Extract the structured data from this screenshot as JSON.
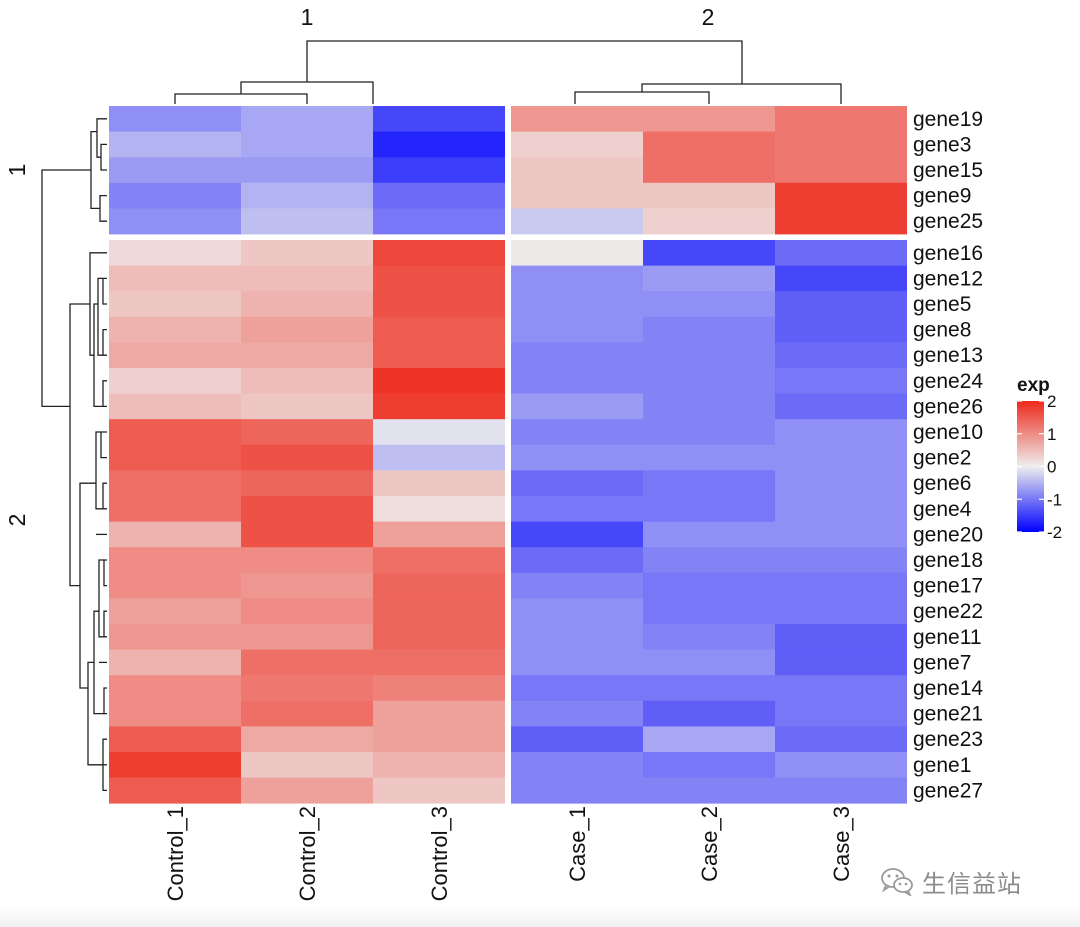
{
  "chart_data": {
    "type": "heatmap",
    "title": "",
    "legend": {
      "title": "exp",
      "ticks": [
        "2",
        "1",
        "0",
        "-1",
        "-2"
      ],
      "tick_values": [
        2,
        1,
        0,
        -1,
        -2
      ],
      "colors": {
        "low": "#0000ff",
        "mid": "#eeeeee",
        "high": "#ee2a1c"
      },
      "placement": "right"
    },
    "column_groups": [
      {
        "label": "1",
        "columns": [
          "Control_1",
          "Control_2",
          "Control_3"
        ]
      },
      {
        "label": "2",
        "columns": [
          "Case_1",
          "Case_2",
          "Case_3"
        ]
      }
    ],
    "row_groups": [
      {
        "label": "1",
        "rows": [
          "gene19",
          "gene3",
          "gene15",
          "gene9",
          "gene25"
        ]
      },
      {
        "label": "2",
        "rows": [
          "gene16",
          "gene12",
          "gene5",
          "gene8",
          "gene13",
          "gene24",
          "gene26",
          "gene10",
          "gene2",
          "gene6",
          "gene4",
          "gene20",
          "gene18",
          "gene17",
          "gene22",
          "gene11",
          "gene7",
          "gene14",
          "gene21",
          "gene23",
          "gene1",
          "gene27"
        ]
      }
    ],
    "columns": [
      "Control_1",
      "Control_2",
      "Control_3",
      "Case_1",
      "Case_2",
      "Case_3"
    ],
    "rows": [
      "gene19",
      "gene3",
      "gene15",
      "gene9",
      "gene25",
      "gene16",
      "gene12",
      "gene5",
      "gene8",
      "gene13",
      "gene24",
      "gene26",
      "gene10",
      "gene2",
      "gene6",
      "gene4",
      "gene20",
      "gene18",
      "gene17",
      "gene22",
      "gene11",
      "gene7",
      "gene14",
      "gene21",
      "gene23",
      "gene1",
      "gene27"
    ],
    "values": [
      [
        -0.8,
        -0.6,
        -1.4,
        0.9,
        0.9,
        1.2
      ],
      [
        -0.5,
        -0.6,
        -1.7,
        0.3,
        1.3,
        1.2
      ],
      [
        -0.7,
        -0.7,
        -1.5,
        0.4,
        1.3,
        1.2
      ],
      [
        -0.9,
        -0.5,
        -1.1,
        0.4,
        0.4,
        1.8
      ],
      [
        -0.8,
        -0.4,
        -1.0,
        -0.3,
        0.3,
        1.8
      ],
      [
        0.2,
        0.4,
        1.7,
        0.05,
        -1.4,
        -1.1
      ],
      [
        0.5,
        0.5,
        1.6,
        -0.8,
        -0.7,
        -1.4
      ],
      [
        0.4,
        0.6,
        1.6,
        -0.8,
        -0.8,
        -1.2
      ],
      [
        0.6,
        0.8,
        1.5,
        -0.8,
        -0.9,
        -1.2
      ],
      [
        0.7,
        0.7,
        1.5,
        -0.9,
        -0.9,
        -1.1
      ],
      [
        0.3,
        0.5,
        1.9,
        -0.9,
        -0.9,
        -1.0
      ],
      [
        0.5,
        0.4,
        1.8,
        -0.7,
        -0.9,
        -1.1
      ],
      [
        1.5,
        1.4,
        -0.1,
        -0.9,
        -0.9,
        -0.8
      ],
      [
        1.5,
        1.6,
        -0.4,
        -0.8,
        -0.8,
        -0.8
      ],
      [
        1.3,
        1.4,
        0.4,
        -1.1,
        -1.0,
        -0.8
      ],
      [
        1.3,
        1.6,
        0.15,
        -1.0,
        -1.0,
        -0.8
      ],
      [
        0.6,
        1.6,
        0.8,
        -1.4,
        -0.8,
        -0.8
      ],
      [
        1.0,
        1.0,
        1.3,
        -1.1,
        -0.9,
        -0.9
      ],
      [
        1.0,
        0.9,
        1.4,
        -0.9,
        -1.0,
        -1.0
      ],
      [
        0.8,
        1.0,
        1.4,
        -0.8,
        -1.0,
        -1.0
      ],
      [
        0.9,
        0.9,
        1.4,
        -0.8,
        -0.9,
        -1.2
      ],
      [
        0.6,
        1.3,
        1.3,
        -0.8,
        -0.8,
        -1.2
      ],
      [
        1.0,
        1.2,
        1.1,
        -1.0,
        -1.0,
        -1.0
      ],
      [
        1.0,
        1.3,
        0.8,
        -0.9,
        -1.2,
        -1.0
      ],
      [
        1.5,
        0.7,
        0.8,
        -1.2,
        -0.6,
        -1.1
      ],
      [
        1.8,
        0.4,
        0.6,
        -0.9,
        -1.0,
        -0.8
      ],
      [
        1.5,
        0.8,
        0.4,
        -0.9,
        -0.9,
        -0.9
      ]
    ]
  },
  "watermark": {
    "text": "生信益站",
    "icon": "wechat-icon"
  }
}
